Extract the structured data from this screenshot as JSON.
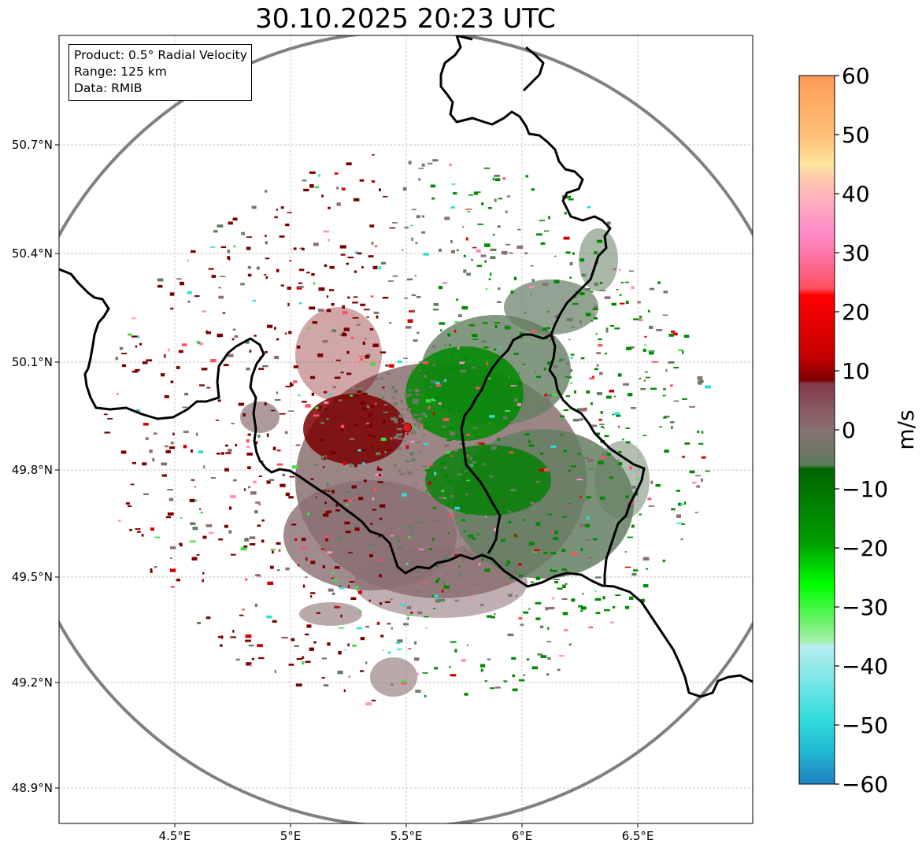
{
  "title": "30.10.2025 20:23 UTC",
  "info_box": {
    "product": "Product: 0.5° Radial Velocity",
    "range": "Range: 125 km",
    "data_source": "Data: RMIB"
  },
  "chart_data": {
    "type": "heatmap",
    "title": "30.10.2025 20:23 UTC",
    "map_extent": {
      "lon": [
        4.0,
        7.0
      ],
      "lat": [
        48.8,
        50.985
      ]
    },
    "x_ticks": [
      {
        "value": 4.5,
        "label": "4.5°E"
      },
      {
        "value": 5.0,
        "label": "5°E"
      },
      {
        "value": 5.5,
        "label": "5.5°E"
      },
      {
        "value": 6.0,
        "label": "6°E"
      },
      {
        "value": 6.5,
        "label": "6.5°E"
      }
    ],
    "y_ticks": [
      {
        "value": 50.7,
        "label": "50.7°N"
      },
      {
        "value": 50.4,
        "label": "50.4°N"
      },
      {
        "value": 50.1,
        "label": "50.1°N"
      },
      {
        "value": 49.8,
        "label": "49.8°N"
      },
      {
        "value": 49.5,
        "label": "49.5°N"
      },
      {
        "value": 49.2,
        "label": "49.2°N"
      },
      {
        "value": 48.9,
        "label": "48.9°N"
      }
    ],
    "radar_site": {
      "lon": 5.505,
      "lat": 49.915
    },
    "range_km": 125,
    "colorbar": {
      "label": "m/s",
      "range": [
        -60,
        60
      ],
      "ticks": [
        "60",
        "50",
        "40",
        "30",
        "20",
        "10",
        "0",
        "−10",
        "−20",
        "−30",
        "−40",
        "−50",
        "−60"
      ]
    },
    "colors": {
      "outgoing_dark": "#7a0000",
      "near_zero_pos": "#8a6e72",
      "near_zero_neg": "#647e62",
      "incoming": "#008a00",
      "range_ring": "#808080",
      "border": "#000000",
      "site_marker": "#e01c1c"
    }
  }
}
